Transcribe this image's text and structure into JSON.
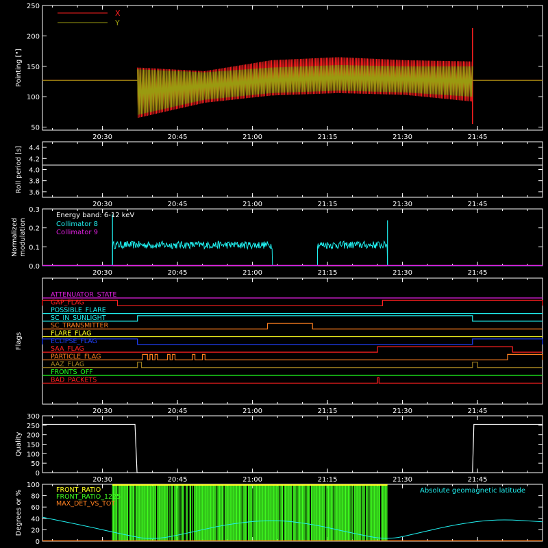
{
  "colors": {
    "background": "#000000",
    "axes": "#ffffff",
    "red": "#ff2020",
    "olive": "#9a9a10",
    "cyan": "#20f0f0",
    "magenta": "#e020e0",
    "white": "#ffffff",
    "orange": "#ff8020",
    "yellow": "#ffff20",
    "blue": "#2040ff",
    "brown": "#a08020",
    "green": "#20ff20",
    "lime": "#40ff20"
  },
  "time_axis": {
    "range": [
      "20:18",
      "21:58"
    ],
    "ticks": [
      "20:30",
      "20:45",
      "21:00",
      "21:15",
      "21:30",
      "21:45"
    ]
  },
  "chart_data": [
    {
      "id": "pointing",
      "type": "line",
      "ylabel": "Pointing [\"]",
      "ylim": [
        45,
        250
      ],
      "yticks": [
        50,
        100,
        150,
        200,
        250
      ],
      "legend": {
        "placement": "top-left",
        "entries": [
          "X",
          "Y"
        ]
      },
      "series": [
        {
          "name": "X",
          "color": "red",
          "flat_value": 127,
          "active_start": "20:37",
          "active_end": "21:44",
          "upper": [
            148,
            142,
            160,
            165,
            160,
            158
          ],
          "lower": [
            65,
            90,
            102,
            106,
            103,
            92
          ],
          "spike_at": "21:44",
          "spike_max": 213
        },
        {
          "name": "Y",
          "color": "olive",
          "flat_value": 127,
          "active_start": "20:37",
          "active_end": "21:44",
          "upper": [
            145,
            140,
            148,
            152,
            150,
            150
          ],
          "lower": [
            70,
            95,
            106,
            110,
            107,
            100
          ]
        }
      ]
    },
    {
      "id": "roll_period",
      "type": "line",
      "ylabel": "Roll period [s]",
      "ylim": [
        3.5,
        4.5
      ],
      "yticks": [
        3.6,
        3.8,
        4.0,
        4.2,
        4.4
      ],
      "series": [
        {
          "color": "white",
          "value": 4.08
        }
      ]
    },
    {
      "id": "modulation",
      "type": "line",
      "ylabel": "Normalized modulation",
      "ylim": [
        0,
        0.3
      ],
      "yticks": [
        0.0,
        0.1,
        0.2,
        0.3
      ],
      "annotation": "Energy band: 6-12 keV",
      "legend": {
        "placement": "top-left",
        "entries": [
          "Collimator 8",
          "Collimator 9"
        ]
      },
      "series": [
        {
          "name": "Collimator 8",
          "color": "cyan",
          "segments": [
            [
              "20:32",
              "21:04"
            ],
            [
              "21:13",
              "21:27"
            ]
          ],
          "mean": 0.11,
          "spread": 0.02,
          "spikes": [
            [
              "20:32",
              0.27
            ],
            [
              "21:27",
              0.24
            ]
          ]
        },
        {
          "name": "Collimator 9",
          "color": "magenta",
          "value": 0.0
        }
      ]
    },
    {
      "id": "flags",
      "type": "line",
      "ylabel": "Flags",
      "rows": [
        {
          "label": "ATTENUATOR_STATE",
          "color": "magenta",
          "changes": []
        },
        {
          "label": "GAP_FLAG",
          "color": "red",
          "changes": [
            [
              "20:18",
              "20:33",
              1
            ],
            [
              "21:26",
              "21:58",
              1
            ]
          ]
        },
        {
          "label": "POSSIBLE_FLARE",
          "color": "cyan",
          "changes": []
        },
        {
          "label": "SC_IN_SUNLIGHT",
          "color": "cyan",
          "changes": [
            [
              "20:37",
              "21:44",
              1
            ]
          ]
        },
        {
          "label": "SC_TRANSMITTER",
          "color": "orange",
          "changes": [
            [
              "21:03",
              "21:12",
              1
            ]
          ]
        },
        {
          "label": "FLARE_FLAG",
          "color": "yellow",
          "changes": []
        },
        {
          "label": "ECLIPSE_FLAG",
          "color": "blue",
          "changes": [
            [
              "20:18",
              "20:37",
              1
            ],
            [
              "21:44",
              "21:58",
              1
            ]
          ]
        },
        {
          "label": "SAA_FLAG",
          "color": "red",
          "changes": [
            [
              "21:25",
              "21:52",
              1
            ]
          ]
        },
        {
          "label": "PARTICLE_FLAG",
          "color": "orange",
          "changes": [
            [
              "20:38",
              "20:39",
              1
            ],
            [
              "20:39.5",
              "20:40",
              1
            ],
            [
              "20:40.5",
              "20:41",
              1
            ],
            [
              "20:43",
              "20:43.5",
              1
            ],
            [
              "20:44",
              "20:44.5",
              1
            ],
            [
              "20:48",
              "20:48.5",
              1
            ],
            [
              "20:50",
              "20:50.5",
              1
            ],
            [
              "21:51",
              "21:58",
              1
            ]
          ]
        },
        {
          "label": "AAZ_FLAG",
          "color": "brown",
          "changes": [
            [
              "20:37",
              "20:37.8",
              1
            ],
            [
              "21:44",
              "21:45",
              1
            ]
          ]
        },
        {
          "label": "FRONTS_OFF",
          "color": "green",
          "changes": []
        },
        {
          "label": "BAD_PACKETS",
          "color": "red",
          "changes": [
            [
              "21:25",
              "21:25.3",
              1
            ]
          ]
        }
      ]
    },
    {
      "id": "quality",
      "type": "line",
      "ylabel": "Quality",
      "ylim": [
        0,
        300
      ],
      "yticks": [
        0,
        50,
        100,
        150,
        200,
        250,
        300
      ],
      "series": [
        {
          "color": "white",
          "high": 255,
          "high_ranges": [
            [
              "20:18",
              "20:36.5"
            ],
            [
              "21:44",
              "21:58"
            ]
          ]
        }
      ]
    },
    {
      "id": "ratios",
      "type": "line",
      "ylabel": "Degrees or %",
      "ylim": [
        0,
        100
      ],
      "yticks": [
        0,
        20,
        40,
        60,
        80,
        100
      ],
      "legend": {
        "placement": "top-left",
        "entries": [
          "FRONT_RATIO",
          "FRONT_RATIO_1225",
          "MAX_DET_VS_TOT"
        ]
      },
      "annotation": "Absolute geomagnetic latitude",
      "series": [
        {
          "name": "FRONT_RATIO",
          "color": "yellow",
          "range": [
            "20:32",
            "21:27"
          ],
          "value": 100
        },
        {
          "name": "FRONT_RATIO_1225",
          "color": "lime",
          "range": [
            "20:32",
            "21:27"
          ],
          "value": 100
        },
        {
          "name": "MAX_DET_VS_TOT",
          "color": "orange",
          "value": 0
        },
        {
          "name": "Absolute geomagnetic latitude",
          "color": "cyan",
          "points": [
            [
              "20:18",
              42
            ],
            [
              "20:26",
              28
            ],
            [
              "20:34",
              12
            ],
            [
              "20:40",
              2
            ],
            [
              "20:47",
              14
            ],
            [
              "20:55",
              30
            ],
            [
              "21:04",
              38
            ],
            [
              "21:12",
              30
            ],
            [
              "21:20",
              14
            ],
            [
              "21:27",
              2
            ],
            [
              "21:33",
              14
            ],
            [
              "21:41",
              30
            ],
            [
              "21:49",
              39
            ],
            [
              "21:58",
              34
            ]
          ]
        }
      ]
    }
  ]
}
